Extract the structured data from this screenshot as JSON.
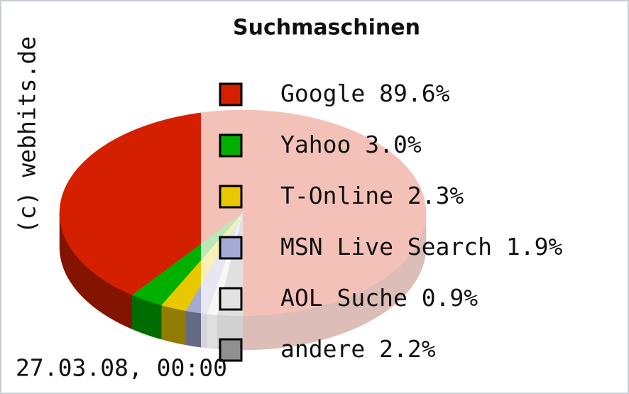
{
  "chart_data": {
    "type": "pie",
    "title": "Suchmaschinen",
    "categories": [
      "Google",
      "Yahoo",
      "T-Online",
      "MSN Live Search",
      "AOL Suche",
      "andere"
    ],
    "values": [
      89.6,
      3.0,
      2.3,
      1.9,
      0.9,
      2.2
    ],
    "value_labels": [
      "89.6%",
      "3.0%",
      "2.3%",
      "1.9%",
      "0.9%",
      "2.2%"
    ],
    "colors": [
      "#d42000",
      "#00b000",
      "#e8c800",
      "#a4aad4",
      "#e2e2e2",
      "#909090"
    ],
    "copyright": "(c) webhits.de",
    "date": "27.03.08, 00:00"
  }
}
